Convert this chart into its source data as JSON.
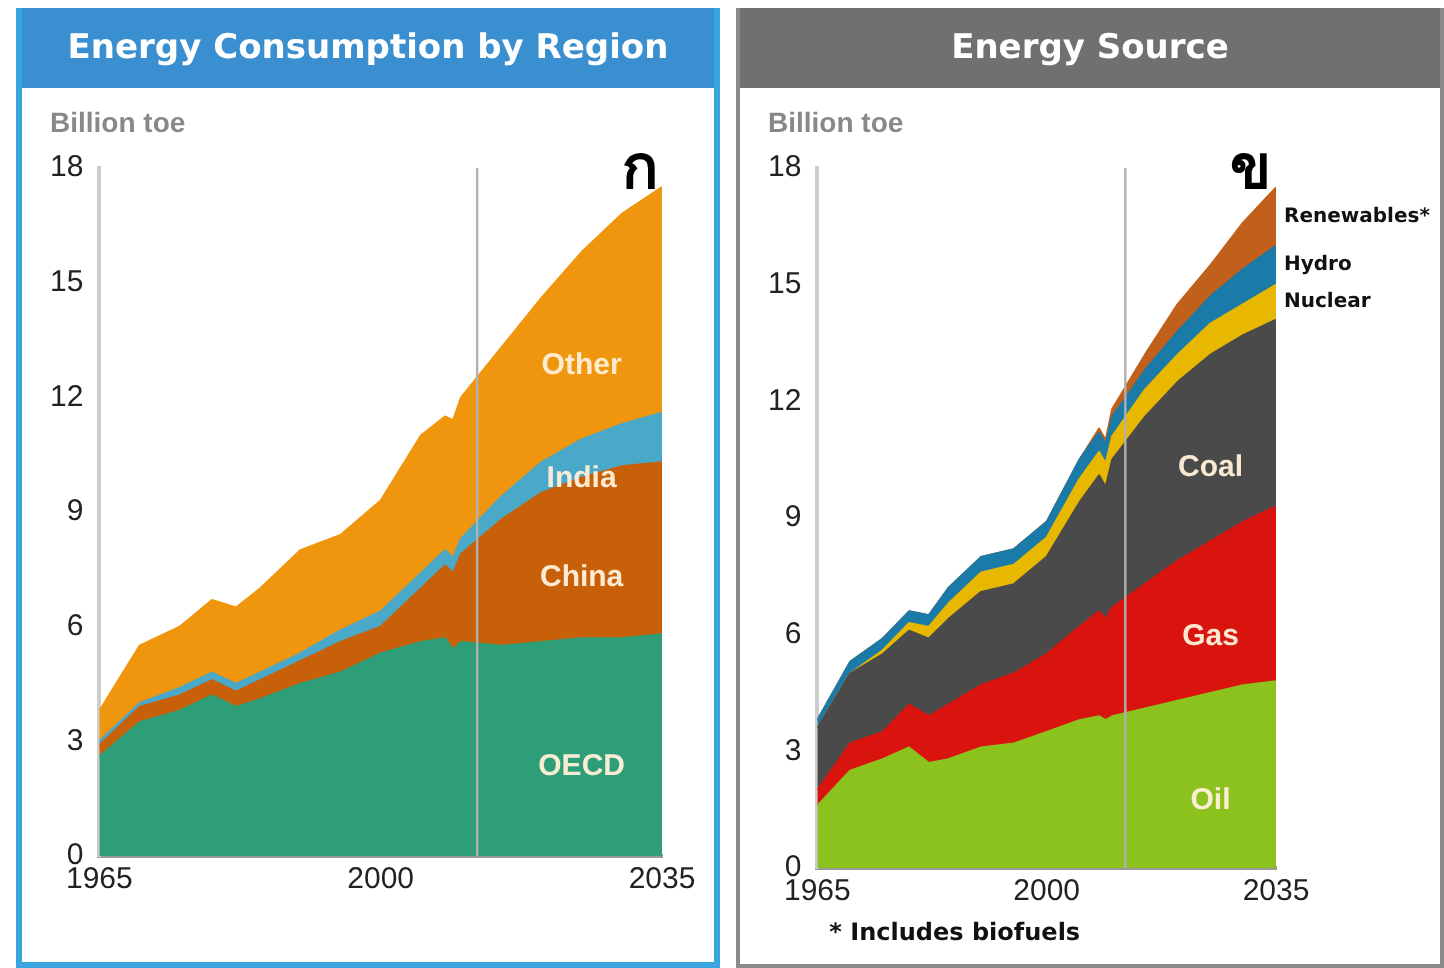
{
  "chart_data": [
    {
      "type": "area",
      "title": "Energy Consumption by Region",
      "ylabel": "Billion toe",
      "stacked": true,
      "legend": false,
      "grid": false,
      "x": [
        1965,
        1970,
        1975,
        1979,
        1982,
        1985,
        1990,
        1995,
        2000,
        2005,
        2008,
        2009,
        2010,
        2015,
        2020,
        2025,
        2030,
        2035
      ],
      "xlim": [
        1965,
        2035
      ],
      "xticks": [
        1965,
        2000,
        2035
      ],
      "ylim": [
        0,
        18
      ],
      "yticks": [
        0,
        3,
        6,
        9,
        12,
        15,
        18
      ],
      "ref_lines": [
        {
          "axis": "x",
          "value": 2012,
          "color": "#b0b0b0"
        }
      ],
      "annotations": [
        "ก"
      ],
      "series": [
        {
          "name": "OECD",
          "color": "#2e9e78",
          "values": [
            2.6,
            3.5,
            3.8,
            4.2,
            3.9,
            4.1,
            4.5,
            4.8,
            5.3,
            5.6,
            5.7,
            5.4,
            5.6,
            5.5,
            5.6,
            5.7,
            5.7,
            5.8
          ]
        },
        {
          "name": "China",
          "color": "#c8600a",
          "values": [
            0.3,
            0.4,
            0.4,
            0.4,
            0.4,
            0.5,
            0.6,
            0.8,
            0.7,
            1.4,
            1.9,
            2.0,
            2.3,
            3.3,
            3.9,
            4.2,
            4.5,
            4.5
          ]
        },
        {
          "name": "India",
          "color": "#4aa8c8",
          "values": [
            0.1,
            0.1,
            0.2,
            0.2,
            0.2,
            0.2,
            0.2,
            0.3,
            0.4,
            0.4,
            0.4,
            0.4,
            0.4,
            0.6,
            0.8,
            1.0,
            1.1,
            1.3
          ]
        },
        {
          "name": "Other",
          "color": "#f0960e",
          "values": [
            0.8,
            1.5,
            1.6,
            1.9,
            2.0,
            2.2,
            2.7,
            2.5,
            2.9,
            3.6,
            3.5,
            3.6,
            3.7,
            3.9,
            4.3,
            4.9,
            5.5,
            5.9
          ]
        }
      ]
    },
    {
      "type": "area",
      "title": "Energy Source",
      "ylabel": "Billion toe",
      "stacked": true,
      "legend": false,
      "grid": false,
      "x": [
        1965,
        1970,
        1975,
        1979,
        1982,
        1985,
        1990,
        1995,
        2000,
        2005,
        2008,
        2009,
        2010,
        2015,
        2020,
        2025,
        2030,
        2035
      ],
      "xlim": [
        1965,
        2035
      ],
      "xticks": [
        1965,
        2000,
        2035
      ],
      "ylim": [
        0,
        18
      ],
      "yticks": [
        0,
        3,
        6,
        9,
        12,
        15,
        18
      ],
      "ref_lines": [
        {
          "axis": "x",
          "value": 2012,
          "color": "#b0b0b0"
        }
      ],
      "annotations": [
        "ข",
        "* Includes biofuels"
      ],
      "series": [
        {
          "name": "Oil",
          "color": "#8cc21e",
          "values": [
            1.6,
            2.5,
            2.8,
            3.1,
            2.7,
            2.8,
            3.1,
            3.2,
            3.5,
            3.8,
            3.9,
            3.8,
            3.9,
            4.1,
            4.3,
            4.5,
            4.7,
            4.8
          ]
        },
        {
          "name": "Gas",
          "color": "#d9140e",
          "values": [
            0.4,
            0.7,
            0.7,
            1.1,
            1.2,
            1.4,
            1.6,
            1.8,
            2.0,
            2.4,
            2.7,
            2.6,
            2.8,
            3.2,
            3.6,
            3.9,
            4.2,
            4.5
          ]
        },
        {
          "name": "Coal",
          "color": "#4a4a4a",
          "values": [
            1.6,
            1.8,
            2.0,
            1.9,
            2.0,
            2.2,
            2.4,
            2.3,
            2.5,
            3.2,
            3.5,
            3.4,
            3.8,
            4.3,
            4.6,
            4.8,
            4.8,
            4.8
          ]
        },
        {
          "name": "Nuclear",
          "color": "#e8b800",
          "values": [
            0,
            0,
            0.1,
            0.2,
            0.3,
            0.4,
            0.5,
            0.5,
            0.5,
            0.6,
            0.6,
            0.6,
            0.6,
            0.7,
            0.7,
            0.8,
            0.8,
            0.9
          ]
        },
        {
          "name": "Hydro",
          "color": "#1a7aa8",
          "values": [
            0.2,
            0.3,
            0.3,
            0.3,
            0.3,
            0.4,
            0.4,
            0.4,
            0.4,
            0.5,
            0.5,
            0.5,
            0.5,
            0.5,
            0.6,
            0.7,
            0.9,
            1.0
          ]
        },
        {
          "name": "Renewables*",
          "color": "#c0601a",
          "values": [
            0,
            0,
            0,
            0,
            0,
            0,
            0,
            0,
            0,
            0,
            0.1,
            0.1,
            0.2,
            0.4,
            0.7,
            0.8,
            1.2,
            1.5
          ]
        }
      ]
    }
  ]
}
